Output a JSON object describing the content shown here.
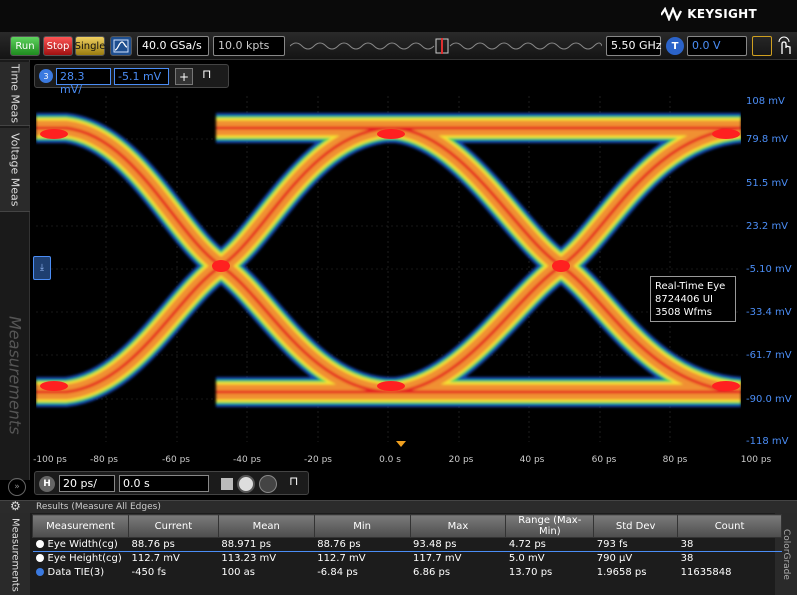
{
  "brand": {
    "name": "KEYSIGHT"
  },
  "toolbar": {
    "run_label": "Run",
    "stop_label": "Stop",
    "single_label": "Single",
    "sample_rate": "40.0 GSa/s",
    "memory_depth": "10.0 kpts",
    "bandwidth": "5.50 GHz",
    "trigger_badge": "T",
    "trigger_level": "0.0 V"
  },
  "left_tabs": {
    "time_meas": "Time Meas",
    "voltage_meas": "Voltage Meas",
    "measurements": "Measurements"
  },
  "channel": {
    "badge": "3",
    "scale": "28.3 mV/",
    "offset": "-5.1 mV",
    "add_label": "+"
  },
  "y_axis": {
    "labels": [
      "108 mV",
      "79.8 mV",
      "51.5 mV",
      "23.2 mV",
      "-5.10 mV",
      "-33.4 mV",
      "-61.7 mV",
      "-90.0 mV",
      "-118 mV"
    ]
  },
  "x_axis": {
    "labels": [
      "-100 ps",
      "-80 ps",
      "-60 ps",
      "-40 ps",
      "-20 ps",
      "0.0 s",
      "20 ps",
      "40 ps",
      "60 ps",
      "80 ps",
      "100 ps"
    ]
  },
  "eye_info": {
    "line1": "Real-Time Eye",
    "line2": "8724406 UI",
    "line3": "3508 Wfms"
  },
  "horizontal": {
    "badge": "H",
    "scale": "20 ps/",
    "position": "0.0 s"
  },
  "results": {
    "header": "Results   (Measure All Edges)",
    "side_label": "Measurements",
    "right_label": "ColorGrade",
    "columns": [
      "Measurement",
      "Current",
      "Mean",
      "Min",
      "Max",
      "Range (Max-Min)",
      "Std Dev",
      "Count"
    ],
    "rows": [
      [
        "Eye Width(cg)",
        "88.76 ps",
        "88.971 ps",
        "88.76 ps",
        "93.48 ps",
        "4.72 ps",
        "793 fs",
        "38"
      ],
      [
        "Eye Height(cg)",
        "112.7 mV",
        "113.23 mV",
        "112.7 mV",
        "117.7 mV",
        "5.0 mV",
        "790 µV",
        "38"
      ],
      [
        "Data TIE(3)",
        "-450 fs",
        "100 as",
        "-6.84 ps",
        "6.86 ps",
        "13.70 ps",
        "1.9658 ps",
        "11635848"
      ]
    ]
  },
  "icons": {
    "run": "play-icon",
    "gear": "gear-icon",
    "pin": "pin-icon"
  }
}
